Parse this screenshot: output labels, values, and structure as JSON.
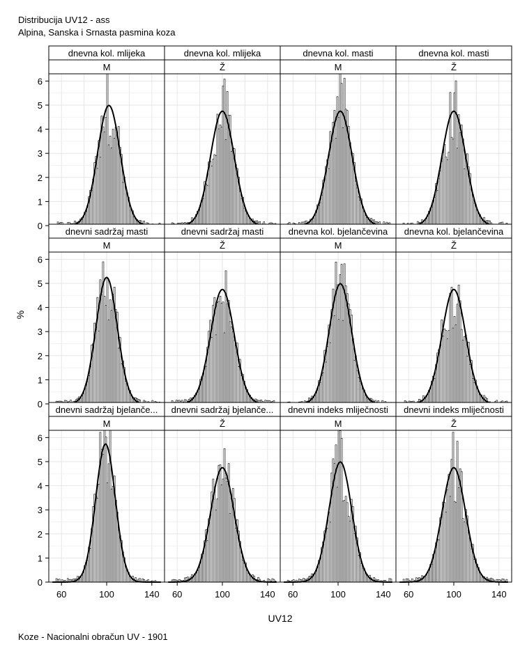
{
  "header": {
    "title": "Distribucija UV12 - ass",
    "subtitle": "Alpina, Sanska i Srnasta pasmina koza"
  },
  "footer": {
    "text": "Koze - Nacionalni obračun UV - 1901"
  },
  "chart_data": {
    "type": "bar",
    "layout": "panel-grid 3x4",
    "overlay": "normal density curve",
    "xlabel": "UV12",
    "ylabel": "%",
    "xlim": [
      50,
      150
    ],
    "ylim": [
      0,
      6.3
    ],
    "xticks": [
      60,
      100,
      140
    ],
    "yticks": [
      0,
      1,
      2,
      3,
      4,
      5,
      6
    ],
    "grid": true,
    "colors": {
      "bar_fill": "#ffffff",
      "bar_stroke": "#000000",
      "curve": "#000000",
      "grid": "#e6e6e6"
    },
    "panels": [
      {
        "trait": "dnevna kol. mlijeka",
        "sex": "M",
        "mean": 102,
        "sd": 10,
        "peak": 5.0
      },
      {
        "trait": "dnevna kol. mlijeka",
        "sex": "Ž",
        "mean": 100,
        "sd": 10.5,
        "peak": 4.3
      },
      {
        "trait": "dnevna kol. masti",
        "sex": "M",
        "mean": 102,
        "sd": 10.5,
        "peak": 5.5
      },
      {
        "trait": "dnevna kol. masti",
        "sex": "Ž",
        "mean": 100,
        "sd": 10.5,
        "peak": 4.4
      },
      {
        "trait": "dnevni sadržaj masti",
        "sex": "M",
        "mean": 100,
        "sd": 9.5,
        "peak": 5.2
      },
      {
        "trait": "dnevni sadržaj masti",
        "sex": "Ž",
        "mean": 100,
        "sd": 10.5,
        "peak": 4.1
      },
      {
        "trait": "dnevna kol. bjelančevina",
        "sex": "M",
        "mean": 102,
        "sd": 10,
        "peak": 5.4
      },
      {
        "trait": "dnevna kol. bjelančevina",
        "sex": "Ž",
        "mean": 100,
        "sd": 10.5,
        "peak": 4.3
      },
      {
        "trait": "dnevni sadržaj bjelanče...",
        "sex": "M",
        "mean": 99,
        "sd": 8.7,
        "peak": 5.9
      },
      {
        "trait": "dnevni sadržaj bjelanče...",
        "sex": "Ž",
        "mean": 100,
        "sd": 10.5,
        "peak": 4.6
      },
      {
        "trait": "dnevni indeks mliječnosti",
        "sex": "M",
        "mean": 102,
        "sd": 10,
        "peak": 5.3
      },
      {
        "trait": "dnevni indeks mliječnosti",
        "sex": "Ž",
        "mean": 100,
        "sd": 10.5,
        "peak": 4.5
      }
    ]
  }
}
